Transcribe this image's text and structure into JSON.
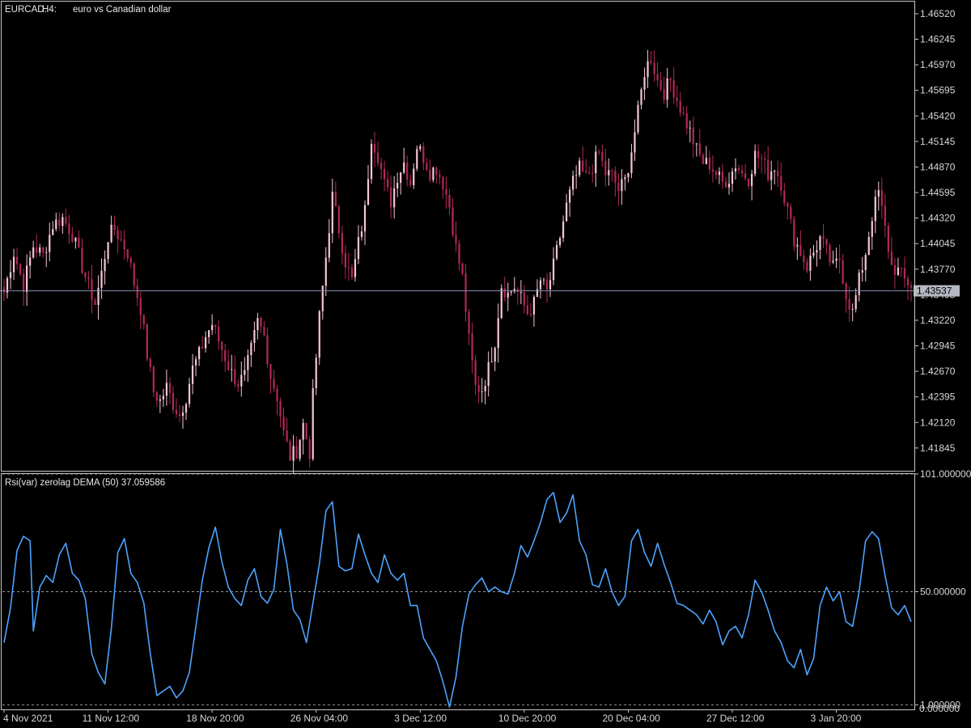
{
  "window": {
    "symbol": "EURCAD.",
    "timeframe": "H4:",
    "description": "euro vs Canadian dollar"
  },
  "colors": {
    "background": "#000000",
    "frame": "#c8c8c8",
    "bull_candle": "#f6c6d2",
    "bear_candle": "#b3285a",
    "price_line": "#7f8aa6",
    "price_label_bg": "#b4b8c2",
    "price_label_text": "#000000",
    "indicator_line": "#4da3ff",
    "level_line": "#9a9a9a"
  },
  "price_panel": {
    "ylim": [
      1.416,
      1.4665
    ],
    "price_tick_labels": [
      "1.46520",
      "1.46245",
      "1.45970",
      "1.45695",
      "1.45420",
      "1.45145",
      "1.44870",
      "1.44595",
      "1.44320",
      "1.44045",
      "1.43770",
      "1.43495",
      "1.43220",
      "1.42945",
      "1.42670",
      "1.42395",
      "1.42120",
      "1.41845"
    ],
    "current_price": 1.43537,
    "current_price_label": "1.43537"
  },
  "indicator_panel": {
    "title": "Rsi(var) zerolag DEMA (50) 37.059586",
    "ylim": [
      -1.0,
      101.0
    ],
    "levels": [
      1.0,
      50.0,
      101.0
    ],
    "level_labels": [
      "1.000000",
      "50.000000",
      "101.000000"
    ],
    "axis_end_label": "0.000000"
  },
  "time_axis": {
    "labels": [
      "4 Nov 2021",
      "11 Nov 12:00",
      "18 Nov 20:00",
      "26 Nov 04:00",
      "3 Dec 12:00",
      "10 Dec 20:00",
      "20 Dec 04:00",
      "27 Dec 12:00",
      "3 Jan 20:00"
    ]
  },
  "chart_data": [
    {
      "type": "candlestick",
      "title": "EURCAD., H4:  euro vs Canadian dollar",
      "x_categories": [
        "4 Nov 2021",
        "11 Nov 12:00",
        "18 Nov 20:00",
        "26 Nov 04:00",
        "3 Dec 12:00",
        "10 Dec 20:00",
        "20 Dec 04:00",
        "27 Dec 12:00",
        "3 Jan 20:00"
      ],
      "close_path": [
        [
          0,
          1.4352
        ],
        [
          3,
          1.4395
        ],
        [
          6,
          1.436
        ],
        [
          9,
          1.4402
        ],
        [
          12,
          1.4392
        ],
        [
          15,
          1.4425
        ],
        [
          18,
          1.4432
        ],
        [
          21,
          1.4415
        ],
        [
          24,
          1.438
        ],
        [
          26,
          1.4358
        ],
        [
          28,
          1.434
        ],
        [
          30,
          1.4372
        ],
        [
          32,
          1.4412
        ],
        [
          34,
          1.442
        ],
        [
          36,
          1.4408
        ],
        [
          38,
          1.4395
        ],
        [
          40,
          1.4362
        ],
        [
          42,
          1.4335
        ],
        [
          44,
          1.4285
        ],
        [
          46,
          1.4245
        ],
        [
          48,
          1.4235
        ],
        [
          50,
          1.425
        ],
        [
          52,
          1.4232
        ],
        [
          54,
          1.422
        ],
        [
          56,
          1.424
        ],
        [
          58,
          1.427
        ],
        [
          60,
          1.4285
        ],
        [
          62,
          1.4305
        ],
        [
          64,
          1.4318
        ],
        [
          66,
          1.43
        ],
        [
          68,
          1.4282
        ],
        [
          70,
          1.4265
        ],
        [
          72,
          1.4255
        ],
        [
          74,
          1.4262
        ],
        [
          76,
          1.429
        ],
        [
          78,
          1.432
        ],
        [
          80,
          1.4305
        ],
        [
          82,
          1.4262
        ],
        [
          84,
          1.424
        ],
        [
          86,
          1.42
        ],
        [
          88,
          1.4175
        ],
        [
          90,
          1.4182
        ],
        [
          92,
          1.421
        ],
        [
          94,
          1.418
        ],
        [
          95,
          1.424
        ],
        [
          97,
          1.4325
        ],
        [
          99,
          1.439
        ],
        [
          101,
          1.4455
        ],
        [
          103,
          1.442
        ],
        [
          105,
          1.4385
        ],
        [
          107,
          1.4365
        ],
        [
          109,
          1.4405
        ],
        [
          111,
          1.444
        ],
        [
          113,
          1.452
        ],
        [
          115,
          1.45
        ],
        [
          117,
          1.4468
        ],
        [
          119,
          1.445
        ],
        [
          121,
          1.4478
        ],
        [
          123,
          1.4492
        ],
        [
          125,
          1.447
        ],
        [
          127,
          1.451
        ],
        [
          129,
          1.4498
        ],
        [
          131,
          1.4482
        ],
        [
          133,
          1.4486
        ],
        [
          135,
          1.447
        ],
        [
          137,
          1.4445
        ],
        [
          139,
          1.44
        ],
        [
          141,
          1.4368
        ],
        [
          143,
          1.43
        ],
        [
          145,
          1.425
        ],
        [
          147,
          1.4248
        ],
        [
          149,
          1.427
        ],
        [
          151,
          1.43
        ],
        [
          153,
          1.436
        ],
        [
          155,
          1.435
        ],
        [
          157,
          1.4358
        ],
        [
          159,
          1.4345
        ],
        [
          161,
          1.433
        ],
        [
          163,
          1.434
        ],
        [
          165,
          1.4365
        ],
        [
          167,
          1.4352
        ],
        [
          169,
          1.438
        ],
        [
          171,
          1.4412
        ],
        [
          173,
          1.4445
        ],
        [
          175,
          1.447
        ],
        [
          177,
          1.4485
        ],
        [
          179,
          1.4475
        ],
        [
          181,
          1.4488
        ],
        [
          183,
          1.4502
        ],
        [
          185,
          1.448
        ],
        [
          187,
          1.4478
        ],
        [
          189,
          1.4462
        ],
        [
          191,
          1.4472
        ],
        [
          193,
          1.4505
        ],
        [
          195,
          1.4545
        ],
        [
          197,
          1.459
        ],
        [
          199,
          1.4605
        ],
        [
          201,
          1.458
        ],
        [
          203,
          1.4568
        ],
        [
          205,
          1.458
        ],
        [
          207,
          1.456
        ],
        [
          209,
          1.4542
        ],
        [
          211,
          1.4525
        ],
        [
          213,
          1.4505
        ],
        [
          215,
          1.4492
        ],
        [
          217,
          1.449
        ],
        [
          219,
          1.448
        ],
        [
          221,
          1.447
        ],
        [
          223,
          1.4475
        ],
        [
          225,
          1.449
        ],
        [
          227,
          1.448
        ],
        [
          229,
          1.4475
        ],
        [
          231,
          1.45
        ],
        [
          233,
          1.4495
        ],
        [
          235,
          1.448
        ],
        [
          237,
          1.4488
        ],
        [
          239,
          1.447
        ],
        [
          241,
          1.444
        ],
        [
          243,
          1.441
        ],
        [
          245,
          1.4395
        ],
        [
          247,
          1.438
        ],
        [
          249,
          1.4395
        ],
        [
          251,
          1.441
        ],
        [
          253,
          1.4395
        ],
        [
          255,
          1.4378
        ],
        [
          257,
          1.4388
        ],
        [
          259,
          1.435
        ],
        [
          261,
          1.433
        ],
        [
          263,
          1.4365
        ],
        [
          265,
          1.4395
        ],
        [
          267,
          1.4435
        ],
        [
          269,
          1.446
        ],
        [
          271,
          1.442
        ],
        [
          273,
          1.438
        ],
        [
          275,
          1.4375
        ],
        [
          277,
          1.4365
        ],
        [
          279,
          1.436
        ]
      ],
      "current_price": 1.43537
    },
    {
      "type": "line",
      "title": "Rsi(var) zerolag DEMA (50) 37.059586",
      "ylim": [
        -1.0,
        101.0
      ],
      "levels": [
        1.0,
        50.0,
        101.0
      ],
      "series": [
        {
          "name": "Rsi(var) zerolag DEMA (50)",
          "values": [
            [
              0,
              28
            ],
            [
              2,
              43
            ],
            [
              4,
              68
            ],
            [
              6,
              74
            ],
            [
              8,
              72
            ],
            [
              9,
              33
            ],
            [
              11,
              52
            ],
            [
              13,
              57
            ],
            [
              15,
              54
            ],
            [
              17,
              66
            ],
            [
              19,
              71
            ],
            [
              21,
              58
            ],
            [
              23,
              55
            ],
            [
              25,
              47
            ],
            [
              27,
              23
            ],
            [
              29,
              15
            ],
            [
              31,
              10
            ],
            [
              33,
              34
            ],
            [
              35,
              67
            ],
            [
              37,
              73
            ],
            [
              39,
              58
            ],
            [
              41,
              54
            ],
            [
              43,
              45
            ],
            [
              45,
              23
            ],
            [
              47,
              5
            ],
            [
              49,
              7
            ],
            [
              51,
              9
            ],
            [
              53,
              4
            ],
            [
              55,
              7
            ],
            [
              57,
              15
            ],
            [
              59,
              35
            ],
            [
              61,
              55
            ],
            [
              63,
              69
            ],
            [
              65,
              78
            ],
            [
              67,
              63
            ],
            [
              69,
              52
            ],
            [
              71,
              47
            ],
            [
              73,
              44
            ],
            [
              75,
              55
            ],
            [
              77,
              60
            ],
            [
              79,
              48
            ],
            [
              81,
              45
            ],
            [
              83,
              51
            ],
            [
              85,
              77
            ],
            [
              87,
              62
            ],
            [
              89,
              42
            ],
            [
              91,
              38
            ],
            [
              93,
              28
            ],
            [
              95,
              45
            ],
            [
              97,
              62
            ],
            [
              99,
              85
            ],
            [
              101,
              89
            ],
            [
              103,
              61
            ],
            [
              105,
              59
            ],
            [
              107,
              60
            ],
            [
              109,
              75
            ],
            [
              111,
              66
            ],
            [
              113,
              58
            ],
            [
              115,
              54
            ],
            [
              117,
              66
            ],
            [
              119,
              58
            ],
            [
              121,
              55
            ],
            [
              123,
              58
            ],
            [
              125,
              44
            ],
            [
              127,
              44
            ],
            [
              129,
              30
            ],
            [
              131,
              25
            ],
            [
              133,
              20
            ],
            [
              135,
              11
            ],
            [
              137,
              0
            ],
            [
              139,
              13
            ],
            [
              141,
              35
            ],
            [
              143,
              49
            ],
            [
              145,
              53
            ],
            [
              147,
              56
            ],
            [
              149,
              50
            ],
            [
              151,
              52
            ],
            [
              153,
              50
            ],
            [
              155,
              49
            ],
            [
              157,
              58
            ],
            [
              159,
              70
            ],
            [
              161,
              65
            ],
            [
              163,
              72
            ],
            [
              165,
              80
            ],
            [
              167,
              90
            ],
            [
              169,
              93
            ],
            [
              171,
              80
            ],
            [
              173,
              84
            ],
            [
              175,
              92
            ],
            [
              177,
              72
            ],
            [
              179,
              66
            ],
            [
              181,
              53
            ],
            [
              183,
              52
            ],
            [
              185,
              60
            ],
            [
              187,
              50
            ],
            [
              189,
              44
            ],
            [
              191,
              48
            ],
            [
              193,
              72
            ],
            [
              195,
              77
            ],
            [
              197,
              67
            ],
            [
              199,
              61
            ],
            [
              201,
              71
            ],
            [
              203,
              62
            ],
            [
              205,
              54
            ],
            [
              207,
              45
            ],
            [
              209,
              44
            ],
            [
              211,
              42
            ],
            [
              213,
              40
            ],
            [
              215,
              36
            ],
            [
              217,
              42
            ],
            [
              219,
              37
            ],
            [
              221,
              27
            ],
            [
              223,
              33
            ],
            [
              225,
              35
            ],
            [
              227,
              30
            ],
            [
              229,
              40
            ],
            [
              231,
              55
            ],
            [
              233,
              50
            ],
            [
              235,
              42
            ],
            [
              237,
              33
            ],
            [
              239,
              28
            ],
            [
              241,
              20
            ],
            [
              243,
              17
            ],
            [
              245,
              25
            ],
            [
              247,
              14
            ],
            [
              249,
              21
            ],
            [
              251,
              44
            ],
            [
              253,
              52
            ],
            [
              255,
              46
            ],
            [
              257,
              50
            ],
            [
              259,
              37
            ],
            [
              261,
              35
            ],
            [
              263,
              50
            ],
            [
              265,
              72
            ],
            [
              267,
              76
            ],
            [
              269,
              73
            ],
            [
              271,
              57
            ],
            [
              273,
              43
            ],
            [
              275,
              40
            ],
            [
              277,
              44
            ],
            [
              279,
              37
            ]
          ]
        }
      ]
    }
  ]
}
